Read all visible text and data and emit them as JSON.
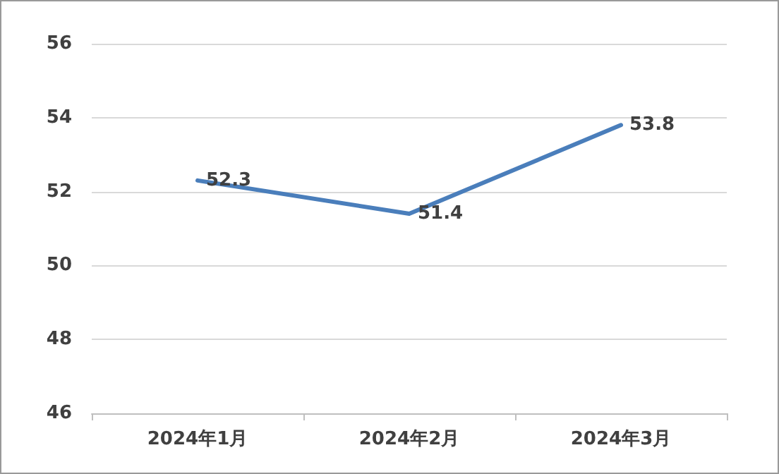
{
  "chart_data": {
    "type": "line",
    "categories": [
      "2024年1月",
      "2024年2月",
      "2024年3月"
    ],
    "series": [
      {
        "color": "#4a7ebb",
        "values": [
          52.3,
          51.4,
          53.8
        ]
      }
    ],
    "ylim": [
      46,
      56
    ],
    "yticks": [
      46,
      48,
      50,
      52,
      54,
      56
    ],
    "grid": "y",
    "data_labels": true,
    "marker": "none",
    "line_style": "solid"
  }
}
